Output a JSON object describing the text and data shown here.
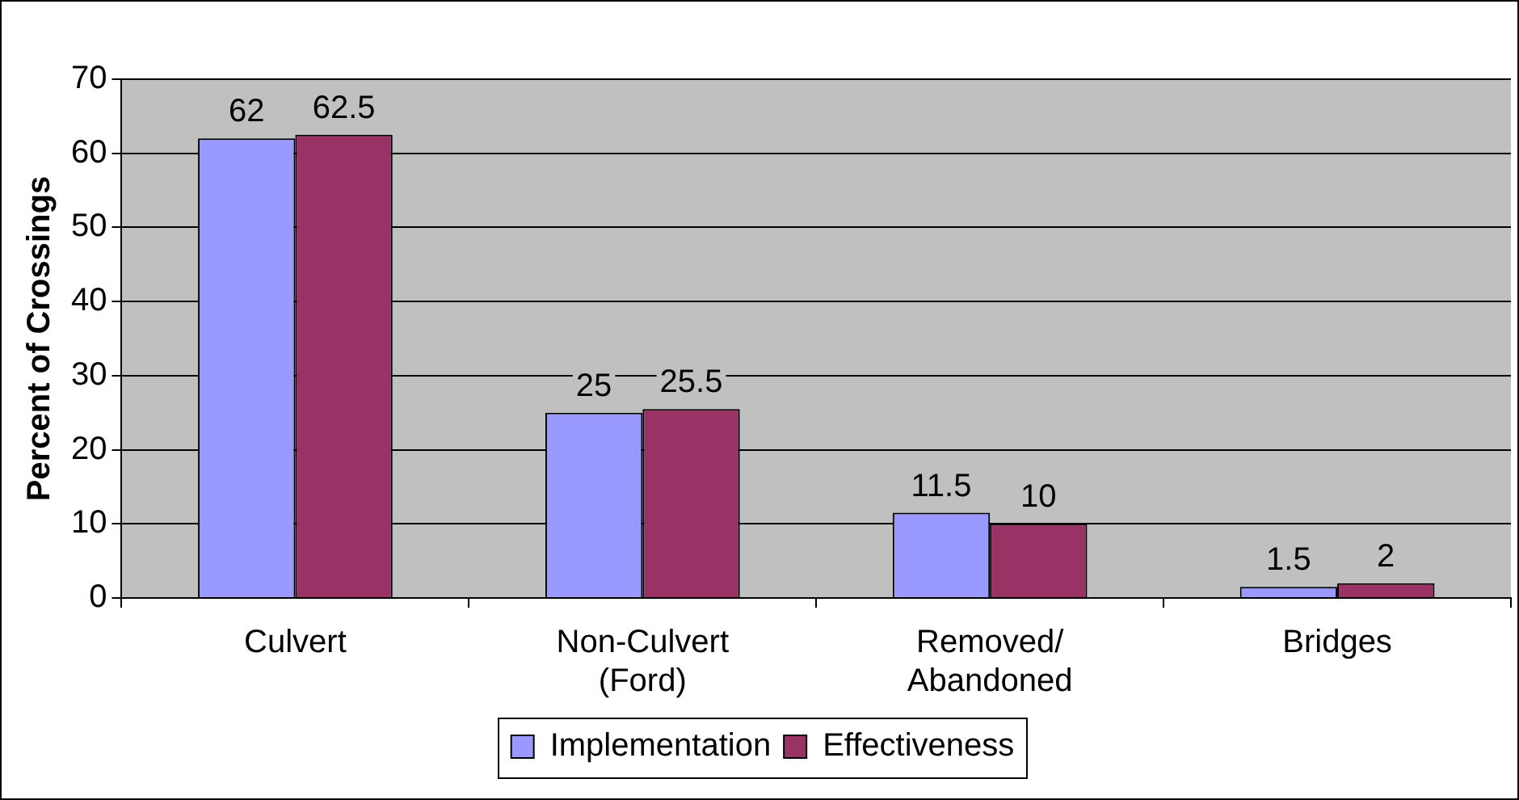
{
  "chart_data": {
    "type": "bar",
    "ylabel": "Percent of Crossings",
    "categories": [
      "Culvert",
      "Non-Culvert (Ford)",
      "Removed/ Abandoned",
      "Bridges"
    ],
    "series": [
      {
        "name": "Implementation",
        "color": "#9999ff",
        "values": [
          62,
          25,
          11.5,
          1.5
        ]
      },
      {
        "name": "Effectiveness",
        "color": "#993366",
        "values": [
          62.5,
          25.5,
          10,
          2
        ]
      }
    ],
    "ylim": [
      0,
      70
    ],
    "yticks": [
      0,
      10,
      20,
      30,
      40,
      50,
      60,
      70
    ],
    "grid": "y",
    "legend": "bottom",
    "data_labels": true
  }
}
